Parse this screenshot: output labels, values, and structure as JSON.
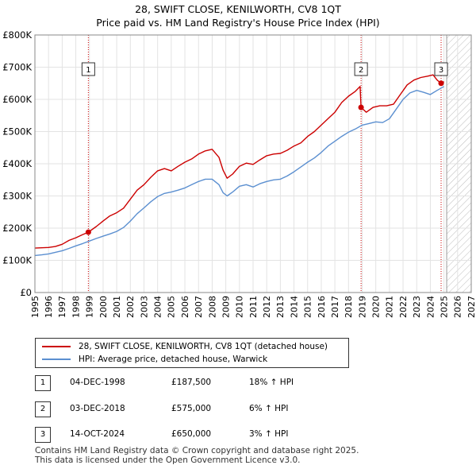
{
  "header": {
    "title": "28, SWIFT CLOSE, KENILWORTH, CV8 1QT",
    "subtitle": "Price paid vs. HM Land Registry's House Price Index (HPI)"
  },
  "legend": {
    "items": [
      {
        "label": "28, SWIFT CLOSE, KENILWORTH, CV8 1QT (detached house)",
        "color": "#cc0000"
      },
      {
        "label": "HPI: Average price, detached house, Warwick",
        "color": "#5b8fd0"
      }
    ]
  },
  "sales": [
    {
      "num": "1",
      "date": "04-DEC-1998",
      "price": "£187,500",
      "hpi": "18% ↑ HPI"
    },
    {
      "num": "2",
      "date": "03-DEC-2018",
      "price": "£575,000",
      "hpi": "6% ↑ HPI"
    },
    {
      "num": "3",
      "date": "14-OCT-2024",
      "price": "£650,000",
      "hpi": "3% ↑ HPI"
    }
  ],
  "footer": {
    "line1": "Contains HM Land Registry data © Crown copyright and database right 2025.",
    "line2": "This data is licensed under the Open Government Licence v3.0."
  },
  "chart_data": {
    "type": "line",
    "title": "28, SWIFT CLOSE, KENILWORTH, CV8 1QT",
    "subtitle": "Price paid vs. HM Land Registry's House Price Index (HPI)",
    "xlabel": "",
    "ylabel": "",
    "xlim": [
      1995,
      2027
    ],
    "ylim": [
      0,
      800000
    ],
    "x_ticks": [
      1995,
      1996,
      1997,
      1998,
      1999,
      2000,
      2001,
      2002,
      2003,
      2004,
      2005,
      2006,
      2007,
      2008,
      2009,
      2010,
      2011,
      2012,
      2013,
      2014,
      2015,
      2016,
      2017,
      2018,
      2019,
      2020,
      2021,
      2022,
      2023,
      2024,
      2025,
      2026,
      2027
    ],
    "y_ticks": [
      {
        "value": 0,
        "label": "£0"
      },
      {
        "value": 100000,
        "label": "£100K"
      },
      {
        "value": 200000,
        "label": "£200K"
      },
      {
        "value": 300000,
        "label": "£300K"
      },
      {
        "value": 400000,
        "label": "£400K"
      },
      {
        "value": 500000,
        "label": "£500K"
      },
      {
        "value": 600000,
        "label": "£600K"
      },
      {
        "value": 700000,
        "label": "£700K"
      },
      {
        "value": 800000,
        "label": "£800K"
      }
    ],
    "grid": true,
    "forecast_from": 2025.2,
    "series": [
      {
        "name": "28, SWIFT CLOSE, KENILWORTH, CV8 1QT (detached house)",
        "color": "#cc0000",
        "x": [
          1995.0,
          1995.5,
          1996.0,
          1996.5,
          1997.0,
          1997.5,
          1998.0,
          1998.5,
          1998.92,
          1999.5,
          2000.0,
          2000.5,
          2001.0,
          2001.5,
          2002.0,
          2002.5,
          2003.0,
          2003.5,
          2004.0,
          2004.5,
          2005.0,
          2005.5,
          2006.0,
          2006.5,
          2007.0,
          2007.5,
          2008.0,
          2008.5,
          2008.8,
          2009.1,
          2009.5,
          2010.0,
          2010.5,
          2011.0,
          2011.5,
          2012.0,
          2012.5,
          2013.0,
          2013.5,
          2014.0,
          2014.5,
          2015.0,
          2015.5,
          2016.0,
          2016.5,
          2017.0,
          2017.5,
          2018.0,
          2018.5,
          2018.85,
          2018.92,
          2019.3,
          2019.8,
          2020.3,
          2020.8,
          2021.3,
          2021.8,
          2022.3,
          2022.8,
          2023.3,
          2023.8,
          2024.2,
          2024.5,
          2024.79,
          2025.0
        ],
        "y": [
          138000,
          139000,
          140000,
          143000,
          150000,
          162000,
          170000,
          180000,
          187500,
          205000,
          222000,
          238000,
          248000,
          262000,
          290000,
          318000,
          335000,
          358000,
          378000,
          385000,
          378000,
          392000,
          405000,
          415000,
          430000,
          440000,
          445000,
          420000,
          380000,
          355000,
          368000,
          392000,
          402000,
          398000,
          412000,
          425000,
          430000,
          432000,
          442000,
          455000,
          465000,
          485000,
          500000,
          520000,
          540000,
          560000,
          590000,
          610000,
          625000,
          640000,
          575000,
          560000,
          575000,
          580000,
          580000,
          585000,
          615000,
          645000,
          660000,
          668000,
          672000,
          676000,
          660000,
          650000,
          655000
        ]
      },
      {
        "name": "HPI: Average price, detached house, Warwick",
        "color": "#5b8fd0",
        "x": [
          1995.0,
          1995.5,
          1996.0,
          1996.5,
          1997.0,
          1997.5,
          1998.0,
          1998.5,
          1999.0,
          1999.5,
          2000.0,
          2000.5,
          2001.0,
          2001.5,
          2002.0,
          2002.5,
          2003.0,
          2003.5,
          2004.0,
          2004.5,
          2005.0,
          2005.5,
          2006.0,
          2006.5,
          2007.0,
          2007.5,
          2008.0,
          2008.5,
          2008.8,
          2009.1,
          2009.5,
          2010.0,
          2010.5,
          2011.0,
          2011.5,
          2012.0,
          2012.5,
          2013.0,
          2013.5,
          2014.0,
          2014.5,
          2015.0,
          2015.5,
          2016.0,
          2016.5,
          2017.0,
          2017.5,
          2018.0,
          2018.5,
          2019.0,
          2019.5,
          2020.0,
          2020.5,
          2021.0,
          2021.5,
          2022.0,
          2022.5,
          2023.0,
          2023.5,
          2024.0,
          2024.5,
          2025.0
        ],
        "y": [
          115000,
          117000,
          120000,
          125000,
          130000,
          137000,
          145000,
          152000,
          160000,
          168000,
          175000,
          182000,
          190000,
          202000,
          222000,
          245000,
          263000,
          282000,
          298000,
          308000,
          312000,
          318000,
          325000,
          335000,
          345000,
          352000,
          352000,
          335000,
          310000,
          300000,
          312000,
          330000,
          335000,
          328000,
          338000,
          345000,
          350000,
          352000,
          362000,
          375000,
          390000,
          405000,
          418000,
          435000,
          455000,
          470000,
          485000,
          498000,
          508000,
          520000,
          525000,
          530000,
          528000,
          540000,
          570000,
          600000,
          620000,
          628000,
          622000,
          615000,
          628000,
          640000
        ]
      }
    ],
    "sale_markers": [
      {
        "label": "1",
        "x": 1998.92,
        "y": 187500
      },
      {
        "label": "2",
        "x": 2018.92,
        "y": 575000
      },
      {
        "label": "3",
        "x": 2024.79,
        "y": 650000
      }
    ]
  }
}
